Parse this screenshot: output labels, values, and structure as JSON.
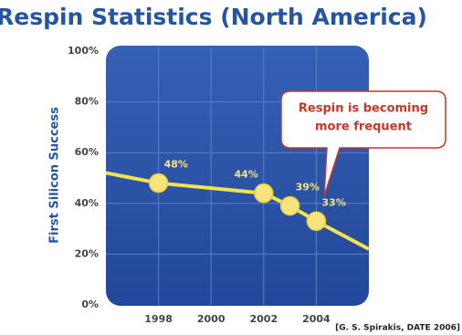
{
  "chart_data": {
    "type": "line",
    "title": "Respin Statistics (North America)",
    "y_label": "First Silicon Success",
    "source": "[G. S. Spirakis, DATE 2006]",
    "annotation": [
      "Respin is becoming",
      "more frequent"
    ],
    "xlim": [
      1996,
      2006
    ],
    "xticks": [
      1998,
      2000,
      2002,
      2004
    ],
    "ylim": [
      0,
      100
    ],
    "yticks": [
      {
        "value": 0,
        "label": "0%"
      },
      {
        "value": 20,
        "label": "20%"
      },
      {
        "value": 40,
        "label": "40%"
      },
      {
        "value": 60,
        "label": "60%"
      },
      {
        "value": 80,
        "label": "80%"
      },
      {
        "value": 100,
        "label": "100%"
      }
    ],
    "grid": true,
    "series": [
      {
        "color": "#f3e34c",
        "x": [
          1996,
          1998,
          2002,
          2003,
          2004,
          2006
        ],
        "values": [
          52,
          48,
          44,
          39,
          33,
          22
        ],
        "value_labels": [
          null,
          "48%",
          "44%",
          "39%",
          "33%",
          null
        ]
      }
    ]
  }
}
